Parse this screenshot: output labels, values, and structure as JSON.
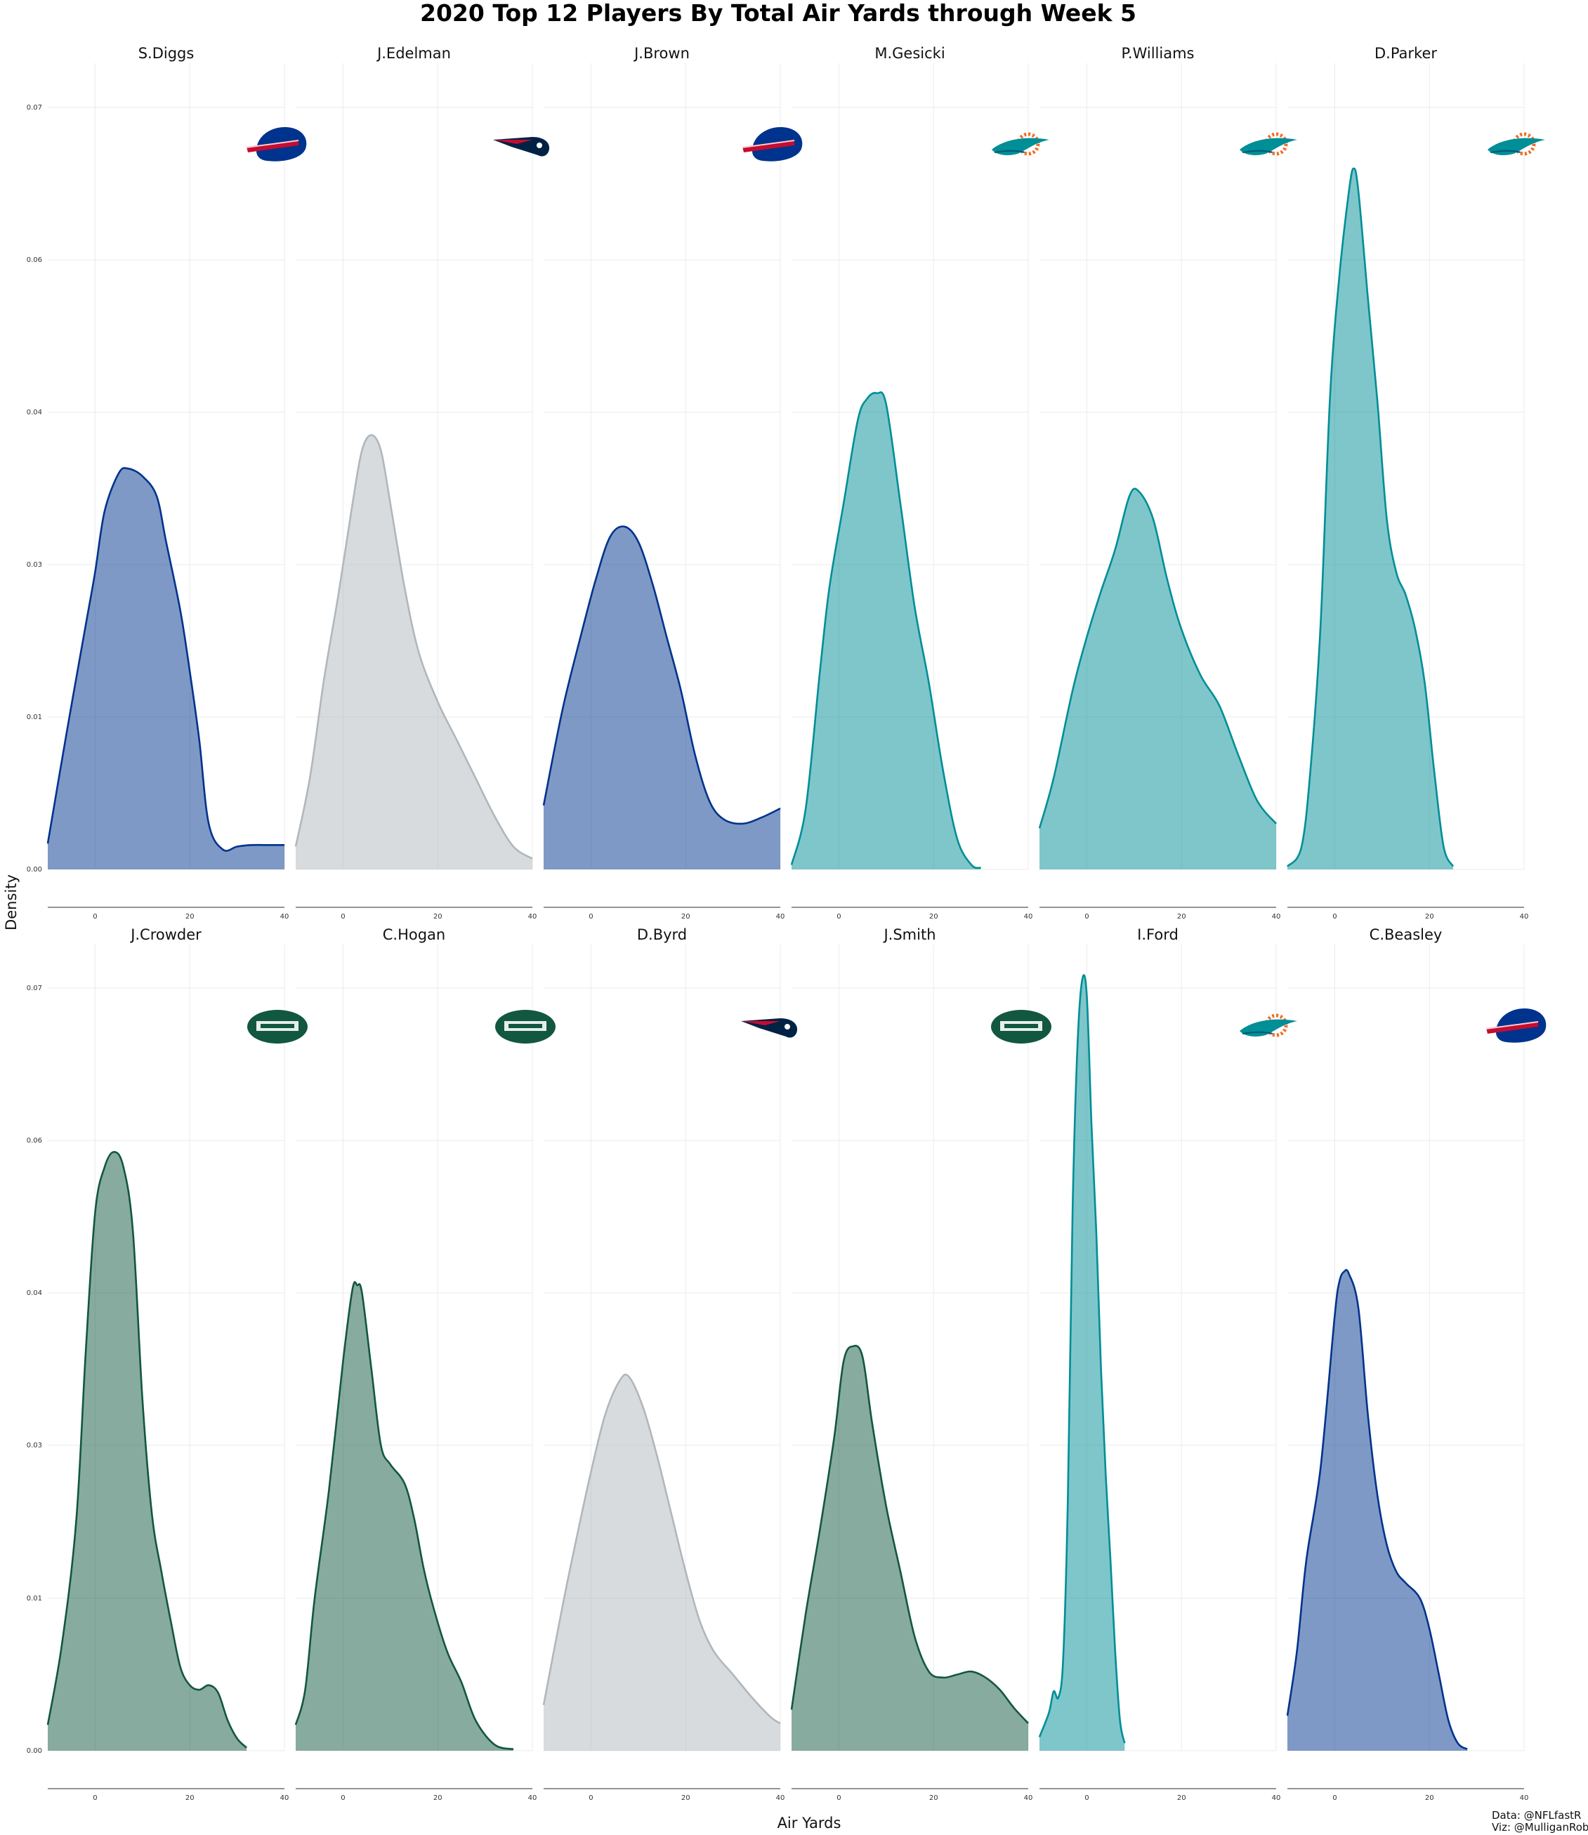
{
  "chart_data": {
    "type": "area",
    "title": "2020 Top 12 Players By Total Air Yards through Week 5",
    "xlabel": "Air Yards",
    "ylabel": "Density",
    "xlim": [
      -10,
      40
    ],
    "ylim": [
      0,
      0.072
    ],
    "x_ticks": [
      0,
      20,
      40
    ],
    "y_ticks": [
      0.0,
      0.01,
      0.03,
      0.04,
      0.06,
      0.07
    ],
    "y_tick_labels": [
      "0.00",
      "0.01",
      "0.03",
      "0.04",
      "0.06",
      "0.07"
    ],
    "grid": true,
    "caption": [
      "Data: @NFLfastR",
      "Viz: @MulliganRob"
    ],
    "team_colors": {
      "BUF": {
        "line": "#00338D",
        "fill": "#00338D"
      },
      "NE": {
        "line": "#B0B7BC",
        "fill": "#B0B7BC"
      },
      "MIA": {
        "line": "#008E97",
        "fill": "#008E97"
      },
      "NYJ": {
        "line": "#125740",
        "fill": "#125740"
      }
    },
    "series": [
      {
        "name": "S.Diggs",
        "team": "BUF",
        "logo": "bills-logo-icon",
        "points": [
          [
            -10,
            0.0017
          ],
          [
            -6,
            0.009
          ],
          [
            -2,
            0.022
          ],
          [
            0,
            0.029
          ],
          [
            2,
            0.0335
          ],
          [
            5,
            0.036
          ],
          [
            7,
            0.0363
          ],
          [
            10,
            0.0358
          ],
          [
            13,
            0.0345
          ],
          [
            15,
            0.0315
          ],
          [
            18,
            0.024
          ],
          [
            20,
            0.016
          ],
          [
            22,
            0.0085
          ],
          [
            24,
            0.003
          ],
          [
            27,
            0.0013
          ],
          [
            30,
            0.0015
          ],
          [
            33,
            0.0016
          ],
          [
            36,
            0.0016
          ],
          [
            40,
            0.0016
          ]
        ]
      },
      {
        "name": "J.Edelman",
        "team": "NE",
        "logo": "patriots-logo-icon",
        "points": [
          [
            -10,
            0.0015
          ],
          [
            -7,
            0.006
          ],
          [
            -4,
            0.015
          ],
          [
            -1,
            0.026
          ],
          [
            2,
            0.034
          ],
          [
            4,
            0.0375
          ],
          [
            6,
            0.0385
          ],
          [
            8,
            0.0375
          ],
          [
            10,
            0.034
          ],
          [
            13,
            0.027
          ],
          [
            16,
            0.0185
          ],
          [
            20,
            0.012
          ],
          [
            24,
            0.0085
          ],
          [
            28,
            0.006
          ],
          [
            32,
            0.0035
          ],
          [
            36,
            0.0015
          ],
          [
            40,
            0.0007
          ]
        ]
      },
      {
        "name": "J.Brown",
        "team": "BUF",
        "logo": "bills-logo-icon",
        "points": [
          [
            -10,
            0.0042
          ],
          [
            -6,
            0.011
          ],
          [
            -2,
            0.021
          ],
          [
            1,
            0.028
          ],
          [
            4,
            0.0318
          ],
          [
            7,
            0.0325
          ],
          [
            10,
            0.0315
          ],
          [
            13,
            0.0275
          ],
          [
            16,
            0.0205
          ],
          [
            19,
            0.0135
          ],
          [
            22,
            0.0075
          ],
          [
            25,
            0.0045
          ],
          [
            28,
            0.0033
          ],
          [
            32,
            0.003
          ],
          [
            36,
            0.0034
          ],
          [
            40,
            0.004
          ]
        ]
      },
      {
        "name": "M.Gesicki",
        "team": "MIA",
        "logo": "dolphins-logo-icon",
        "points": [
          [
            -10,
            0.0003
          ],
          [
            -7,
            0.004
          ],
          [
            -4,
            0.016
          ],
          [
            -2,
            0.027
          ],
          [
            1,
            0.034
          ],
          [
            4,
            0.0395
          ],
          [
            6,
            0.0418
          ],
          [
            8,
            0.0425
          ],
          [
            10,
            0.041
          ],
          [
            13,
            0.034
          ],
          [
            16,
            0.0245
          ],
          [
            19,
            0.0145
          ],
          [
            22,
            0.0065
          ],
          [
            25,
            0.002
          ],
          [
            28,
            0.0003
          ],
          [
            30,
            0.0001
          ]
        ]
      },
      {
        "name": "P.Williams",
        "team": "MIA",
        "logo": "dolphins-logo-icon",
        "points": [
          [
            -10,
            0.0027
          ],
          [
            -7,
            0.006
          ],
          [
            -3,
            0.0135
          ],
          [
            0,
            0.0205
          ],
          [
            3,
            0.0265
          ],
          [
            6,
            0.031
          ],
          [
            9,
            0.0345
          ],
          [
            11,
            0.0348
          ],
          [
            14,
            0.033
          ],
          [
            17,
            0.028
          ],
          [
            20,
            0.0215
          ],
          [
            24,
            0.0155
          ],
          [
            28,
            0.0115
          ],
          [
            32,
            0.0075
          ],
          [
            36,
            0.0045
          ],
          [
            40,
            0.003
          ]
        ]
      },
      {
        "name": "D.Parker",
        "team": "MIA",
        "logo": "dolphins-logo-icon",
        "points": [
          [
            -10,
            0.0002
          ],
          [
            -7,
            0.0015
          ],
          [
            -5,
            0.007
          ],
          [
            -3,
            0.022
          ],
          [
            -1,
            0.042
          ],
          [
            1,
            0.058
          ],
          [
            3,
            0.0645
          ],
          [
            4,
            0.066
          ],
          [
            5,
            0.0645
          ],
          [
            7,
            0.055
          ],
          [
            9,
            0.0415
          ],
          [
            11,
            0.033
          ],
          [
            13,
            0.029
          ],
          [
            15,
            0.026
          ],
          [
            17,
            0.0215
          ],
          [
            19,
            0.0145
          ],
          [
            21,
            0.0065
          ],
          [
            23,
            0.0015
          ],
          [
            25,
            0.0002
          ]
        ]
      },
      {
        "name": "J.Crowder",
        "team": "NYJ",
        "logo": "jets-logo-icon",
        "points": [
          [
            -10,
            0.0017
          ],
          [
            -7,
            0.007
          ],
          [
            -4,
            0.02
          ],
          [
            -2,
            0.036
          ],
          [
            0,
            0.0505
          ],
          [
            2,
            0.0565
          ],
          [
            4,
            0.0585
          ],
          [
            6,
            0.0565
          ],
          [
            8,
            0.048
          ],
          [
            10,
            0.033
          ],
          [
            12,
            0.021
          ],
          [
            14,
            0.0135
          ],
          [
            16,
            0.0085
          ],
          [
            18,
            0.0055
          ],
          [
            20,
            0.0043
          ],
          [
            22,
            0.004
          ],
          [
            24,
            0.0043
          ],
          [
            26,
            0.0038
          ],
          [
            28,
            0.002
          ],
          [
            30,
            0.0008
          ],
          [
            32,
            0.0002
          ]
        ]
      },
      {
        "name": "C.Hogan",
        "team": "NYJ",
        "logo": "jets-logo-icon",
        "points": [
          [
            -10,
            0.0017
          ],
          [
            -8,
            0.004
          ],
          [
            -6,
            0.01
          ],
          [
            -3,
            0.024
          ],
          [
            0,
            0.0355
          ],
          [
            2,
            0.0405
          ],
          [
            3,
            0.041
          ],
          [
            4,
            0.04
          ],
          [
            6,
            0.035
          ],
          [
            8,
            0.03
          ],
          [
            10,
            0.0275
          ],
          [
            13,
            0.025
          ],
          [
            15,
            0.0205
          ],
          [
            17,
            0.014
          ],
          [
            19,
            0.0095
          ],
          [
            22,
            0.0065
          ],
          [
            25,
            0.0045
          ],
          [
            28,
            0.002
          ],
          [
            32,
            0.0004
          ],
          [
            36,
            0.0001
          ]
        ]
      },
      {
        "name": "D.Byrd",
        "team": "NE",
        "logo": "patriots-logo-icon",
        "points": [
          [
            -10,
            0.003
          ],
          [
            -6,
            0.0095
          ],
          [
            -3,
            0.018
          ],
          [
            0,
            0.0265
          ],
          [
            3,
            0.032
          ],
          [
            6,
            0.0342
          ],
          [
            8,
            0.0345
          ],
          [
            11,
            0.0325
          ],
          [
            14,
            0.0285
          ],
          [
            17,
            0.021
          ],
          [
            20,
            0.0135
          ],
          [
            23,
            0.0085
          ],
          [
            26,
            0.0065
          ],
          [
            30,
            0.005
          ],
          [
            34,
            0.0035
          ],
          [
            38,
            0.0022
          ],
          [
            40,
            0.0018
          ]
        ]
      },
      {
        "name": "J.Smith",
        "team": "NYJ",
        "logo": "jets-logo-icon",
        "points": [
          [
            -10,
            0.0027
          ],
          [
            -7,
            0.009
          ],
          [
            -4,
            0.019
          ],
          [
            -1,
            0.0305
          ],
          [
            1,
            0.0355
          ],
          [
            3,
            0.0365
          ],
          [
            5,
            0.0358
          ],
          [
            7,
            0.0315
          ],
          [
            10,
            0.022
          ],
          [
            13,
            0.0135
          ],
          [
            16,
            0.0075
          ],
          [
            19,
            0.0052
          ],
          [
            22,
            0.0048
          ],
          [
            25,
            0.005
          ],
          [
            28,
            0.0052
          ],
          [
            31,
            0.0048
          ],
          [
            34,
            0.004
          ],
          [
            37,
            0.0028
          ],
          [
            40,
            0.0018
          ]
        ]
      },
      {
        "name": "I.Ford",
        "team": "MIA",
        "logo": "dolphins-logo-icon",
        "points": [
          [
            -10,
            0.0009
          ],
          [
            -8,
            0.0025
          ],
          [
            -7,
            0.0039
          ],
          [
            -6,
            0.0035
          ],
          [
            -5,
            0.006
          ],
          [
            -4,
            0.023
          ],
          [
            -3,
            0.051
          ],
          [
            -2,
            0.066
          ],
          [
            -1,
            0.0705
          ],
          [
            0,
            0.0695
          ],
          [
            1,
            0.061
          ],
          [
            2,
            0.048
          ],
          [
            3,
            0.035
          ],
          [
            4,
            0.026
          ],
          [
            5,
            0.015
          ],
          [
            6,
            0.0065
          ],
          [
            7,
            0.002
          ],
          [
            8,
            0.0005
          ]
        ]
      },
      {
        "name": "C.Beasley",
        "team": "BUF",
        "logo": "bills-logo-icon",
        "points": [
          [
            -10,
            0.0023
          ],
          [
            -8,
            0.0065
          ],
          [
            -6,
            0.015
          ],
          [
            -3,
            0.027
          ],
          [
            0,
            0.0385
          ],
          [
            1,
            0.0415
          ],
          [
            2,
            0.0428
          ],
          [
            3,
            0.0425
          ],
          [
            5,
            0.039
          ],
          [
            7,
            0.032
          ],
          [
            9,
            0.0235
          ],
          [
            11,
            0.017
          ],
          [
            13,
            0.0135
          ],
          [
            15,
            0.012
          ],
          [
            18,
            0.01
          ],
          [
            20,
            0.008
          ],
          [
            22,
            0.005
          ],
          [
            24,
            0.002
          ],
          [
            26,
            0.0005
          ],
          [
            28,
            0.0001
          ]
        ]
      }
    ]
  }
}
